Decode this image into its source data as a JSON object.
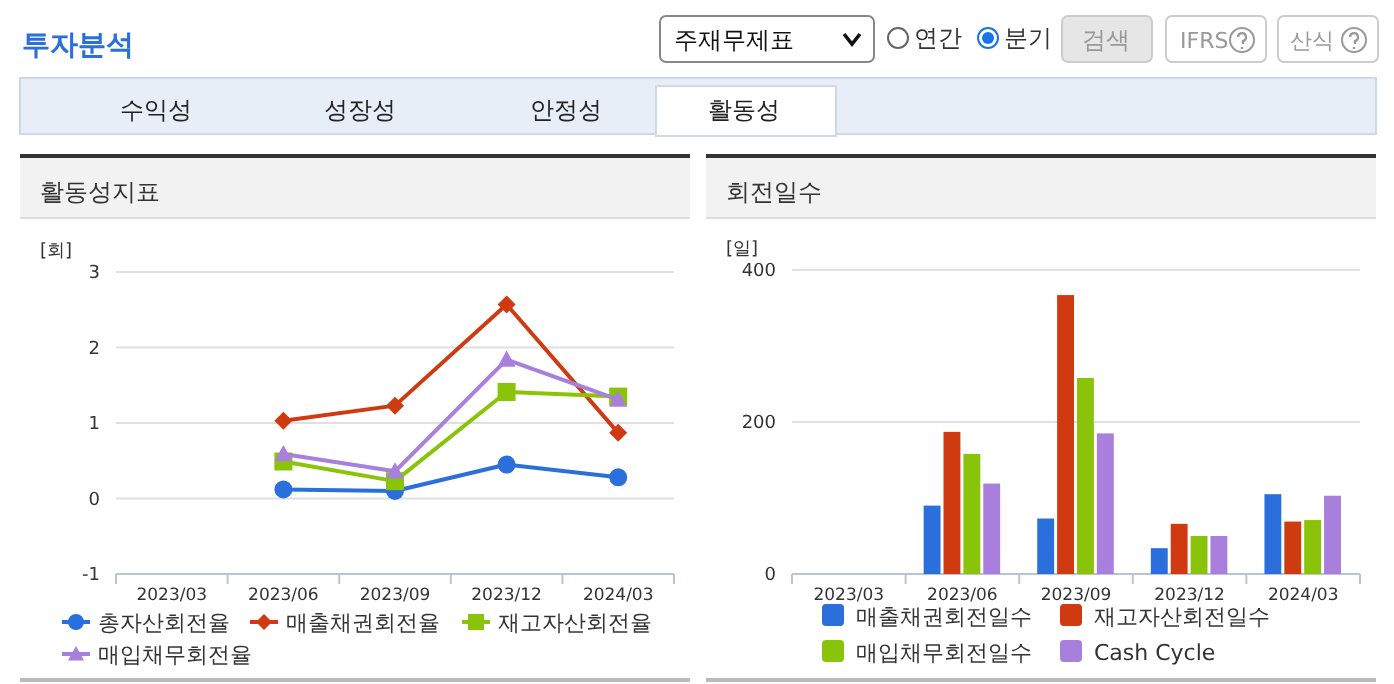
{
  "chart_data": [
    {
      "type": "other",
      "annotations": [
        "투자분석",
        "주재무제표",
        "연간",
        "분기",
        "검색",
        "IFRS",
        "산식",
        "수익성",
        "성장성",
        "안정성",
        "활동성"
      ]
    },
    {
      "type": "line",
      "title": "활동성지표",
      "ylabel": "[회]",
      "categories": [
        "2023/03",
        "2023/06",
        "2023/09",
        "2023/12",
        "2024/03"
      ],
      "ylim": [
        -1,
        3
      ],
      "yticks": [
        -1,
        0,
        1,
        2,
        3
      ],
      "grid": "y",
      "legend": "bottom",
      "series": [
        {
          "name": "총자산회전율",
          "color": "#2a6fdb",
          "marker": "circle",
          "values": [
            null,
            0.12,
            0.1,
            0.45,
            0.28
          ]
        },
        {
          "name": "매출채권회전율",
          "color": "#d03a10",
          "marker": "diamond",
          "values": [
            null,
            1.03,
            1.23,
            2.57,
            0.87
          ]
        },
        {
          "name": "재고자산회전율",
          "color": "#8ac40a",
          "marker": "square",
          "values": [
            null,
            0.49,
            0.23,
            1.41,
            1.35
          ]
        },
        {
          "name": "매입채무회전율",
          "color": "#a87fdc",
          "marker": "triangle",
          "values": [
            null,
            0.59,
            0.36,
            1.84,
            1.31
          ]
        }
      ]
    },
    {
      "type": "bar",
      "title": "회전일수",
      "ylabel": "[일]",
      "categories": [
        "2023/03",
        "2023/06",
        "2023/09",
        "2023/12",
        "2024/03"
      ],
      "ylim": [
        0,
        400
      ],
      "yticks": [
        0,
        200,
        400
      ],
      "grid": "y",
      "legend": "bottom",
      "series": [
        {
          "name": "매출채권회전일수",
          "color": "#2a6fdb",
          "values": [
            null,
            90,
            73,
            34,
            105
          ]
        },
        {
          "name": "재고자산회전일수",
          "color": "#d03a10",
          "values": [
            null,
            187,
            367,
            66,
            69
          ]
        },
        {
          "name": "매입채무회전일수",
          "color": "#8ac40a",
          "values": [
            null,
            158,
            258,
            50,
            71
          ]
        },
        {
          "name": "Cash Cycle",
          "color": "#a87fdc",
          "values": [
            null,
            119,
            185,
            50,
            103
          ]
        }
      ]
    }
  ]
}
